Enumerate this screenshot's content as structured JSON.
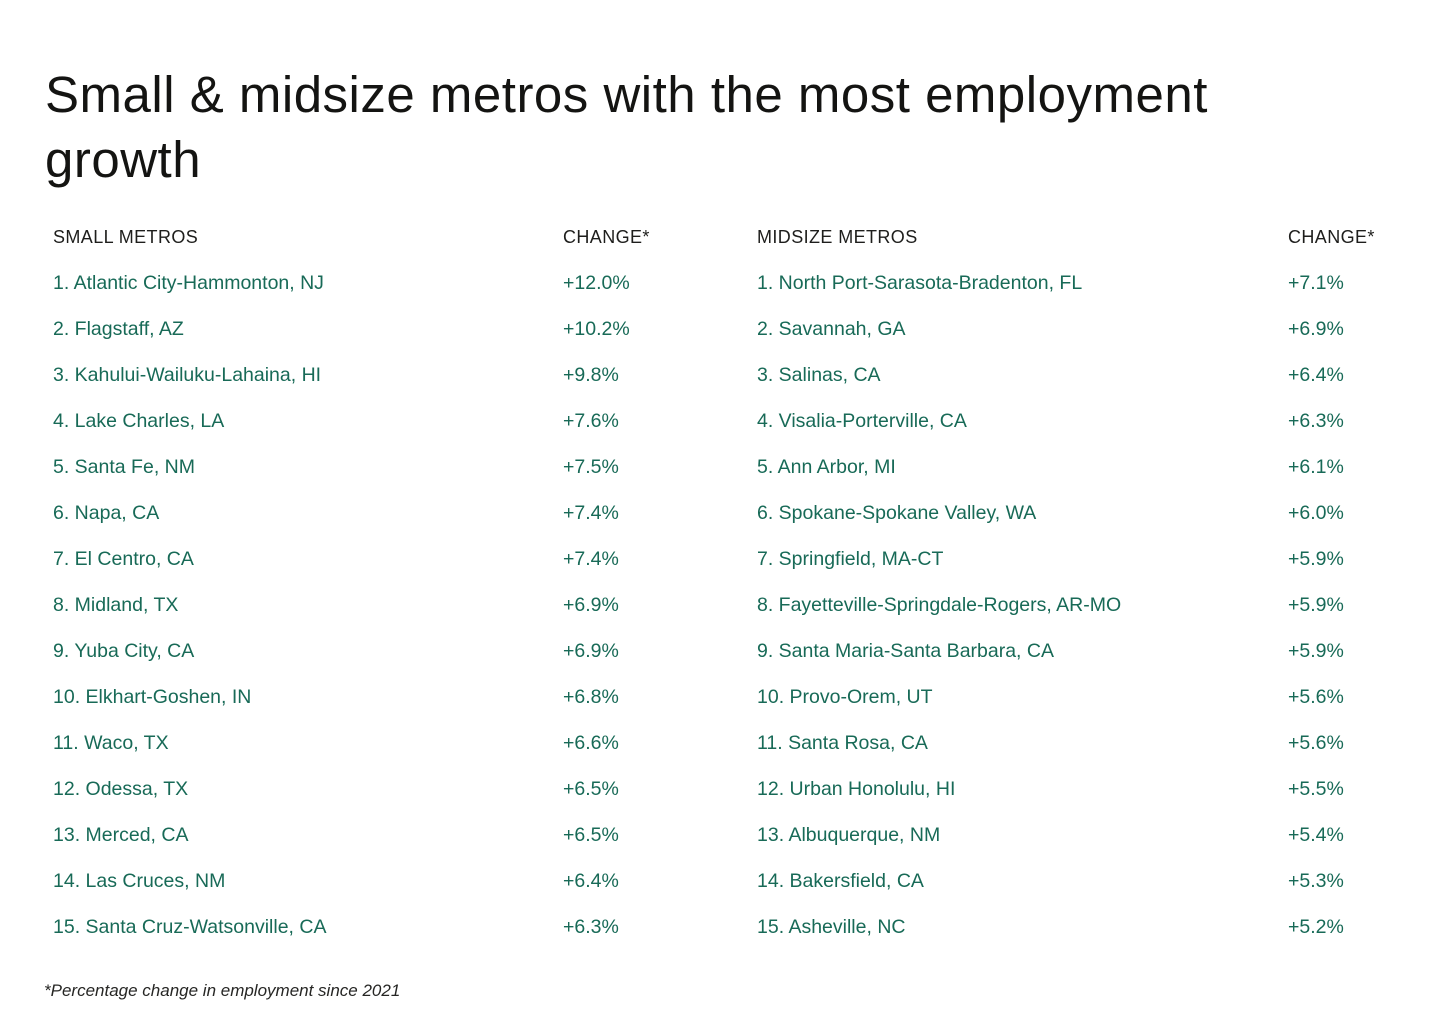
{
  "colors": {
    "accent_green": "#186a57",
    "heading_text": "#1e1e1c",
    "title_text": "#141412",
    "background": "#ffffff"
  },
  "header": {
    "title": "Small & midsize metros with the most employment growth",
    "title_line1": "Small & midsize metros with the most employment",
    "title_line2": "growth"
  },
  "footnote": "*Percentage change in employment since 2021",
  "chart_data": {
    "type": "table",
    "title": "Small & midsize metros with the most employment growth",
    "footnote": "*Percentage change in employment since 2021",
    "tables": [
      {
        "name_header": "SMALL METROS",
        "change_header": "CHANGE*",
        "rows": [
          {
            "label": "1. Atlantic City-Hammonton, NJ",
            "change": "+12.0%"
          },
          {
            "label": "2. Flagstaff, AZ",
            "change": "+10.2%"
          },
          {
            "label": "3. Kahului-Wailuku-Lahaina, HI",
            "change": "+9.8%"
          },
          {
            "label": "4. Lake Charles, LA",
            "change": "+7.6%"
          },
          {
            "label": "5. Santa Fe, NM",
            "change": "+7.5%"
          },
          {
            "label": "6. Napa, CA",
            "change": "+7.4%"
          },
          {
            "label": "7. El Centro, CA",
            "change": "+7.4%"
          },
          {
            "label": "8. Midland, TX",
            "change": "+6.9%"
          },
          {
            "label": "9. Yuba City, CA",
            "change": "+6.9%"
          },
          {
            "label": "10. Elkhart-Goshen, IN",
            "change": "+6.8%"
          },
          {
            "label": "11. Waco, TX",
            "change": "+6.6%"
          },
          {
            "label": "12. Odessa, TX",
            "change": "+6.5%"
          },
          {
            "label": "13. Merced, CA",
            "change": "+6.5%"
          },
          {
            "label": "14. Las Cruces, NM",
            "change": "+6.4%"
          },
          {
            "label": "15. Santa Cruz-Watsonville, CA",
            "change": "+6.3%"
          }
        ]
      },
      {
        "name_header": "MIDSIZE METROS",
        "change_header": "CHANGE*",
        "rows": [
          {
            "label": "1. North Port-Sarasota-Bradenton, FL",
            "change": "+7.1%"
          },
          {
            "label": "2. Savannah, GA",
            "change": "+6.9%"
          },
          {
            "label": "3. Salinas, CA",
            "change": "+6.4%"
          },
          {
            "label": "4. Visalia-Porterville, CA",
            "change": "+6.3%"
          },
          {
            "label": "5. Ann Arbor, MI",
            "change": "+6.1%"
          },
          {
            "label": "6. Spokane-Spokane Valley, WA",
            "change": "+6.0%"
          },
          {
            "label": "7. Springfield, MA-CT",
            "change": "+5.9%"
          },
          {
            "label": "8. Fayetteville-Springdale-Rogers, AR-MO",
            "change": "+5.9%"
          },
          {
            "label": "9. Santa Maria-Santa Barbara, CA",
            "change": "+5.9%"
          },
          {
            "label": "10. Provo-Orem, UT",
            "change": "+5.6%"
          },
          {
            "label": "11. Santa Rosa, CA",
            "change": "+5.6%"
          },
          {
            "label": "12. Urban Honolulu, HI",
            "change": "+5.5%"
          },
          {
            "label": "13. Albuquerque, NM",
            "change": "+5.4%"
          },
          {
            "label": "14. Bakersfield, CA",
            "change": "+5.3%"
          },
          {
            "label": "15. Asheville, NC",
            "change": "+5.2%"
          }
        ]
      }
    ]
  }
}
